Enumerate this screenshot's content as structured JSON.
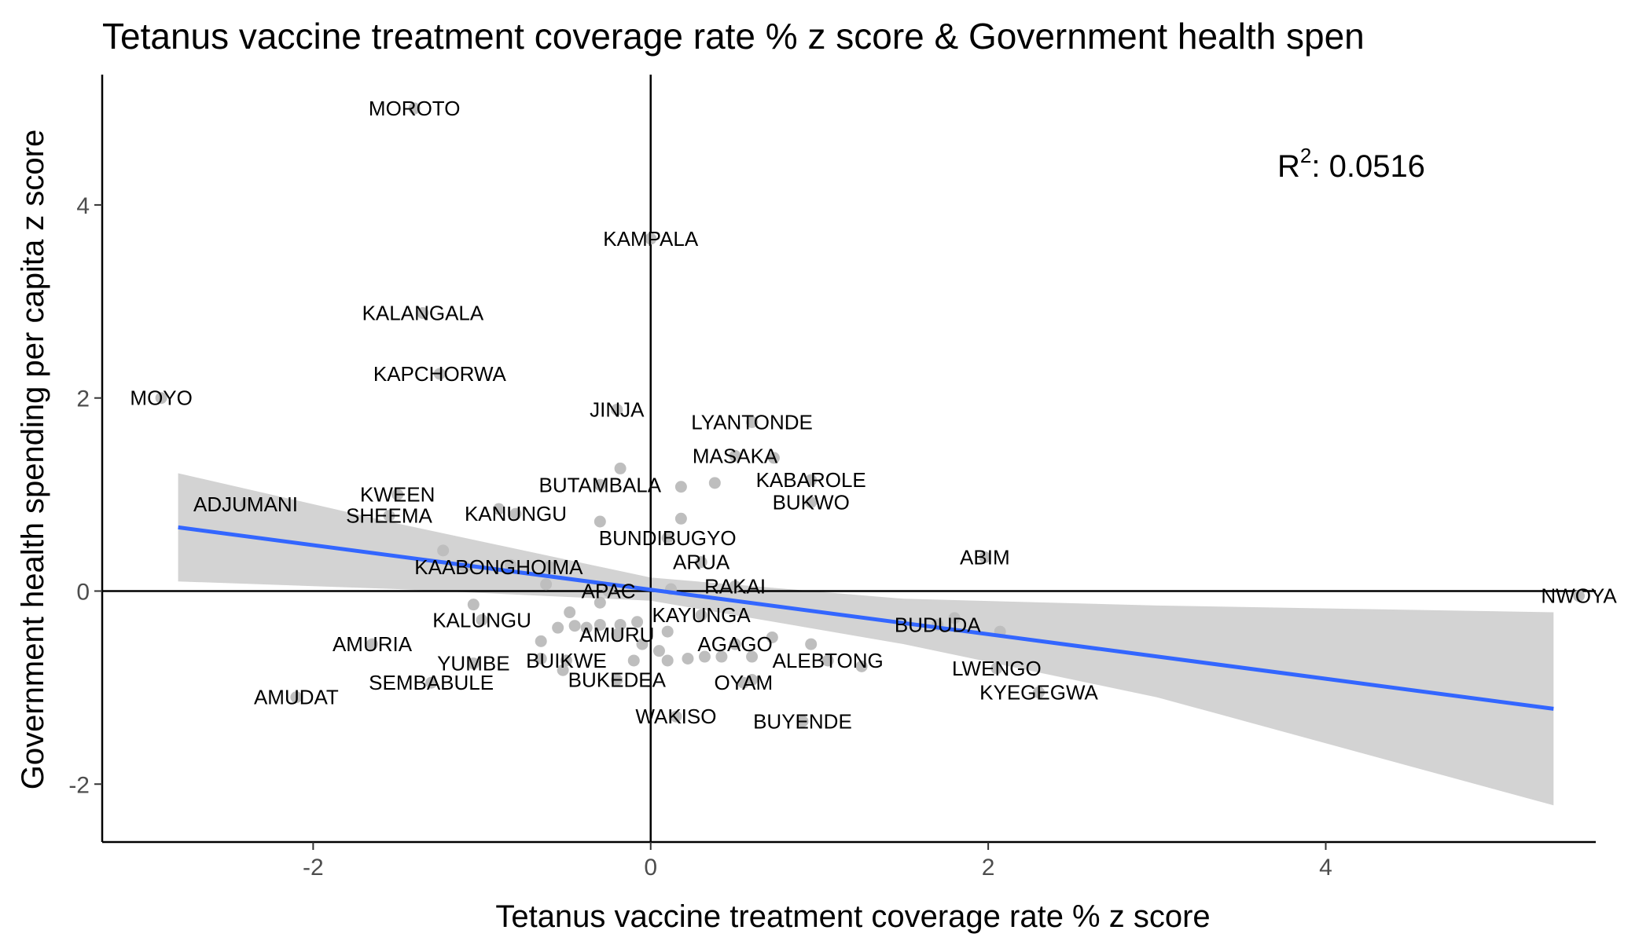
{
  "chart_data": {
    "type": "scatter",
    "title": "Tetanus vaccine treatment coverage rate % z score & Government health spen",
    "xlabel": "Tetanus vaccine treatment coverage rate % z score",
    "ylabel": "Government health spending per capita z score",
    "xlim": [
      -3.25,
      5.6
    ],
    "ylim": [
      -2.6,
      5.35
    ],
    "x_ticks": [
      -2,
      0,
      2,
      4
    ],
    "y_ticks": [
      -2,
      0,
      2,
      4
    ],
    "x_tick_labels": [
      "-2",
      "0",
      "2",
      "4"
    ],
    "y_tick_labels": [
      "-2",
      "0",
      "2",
      "4"
    ],
    "reference_lines": {
      "x": 0,
      "y": 0
    },
    "annotation": {
      "prefix": "R",
      "superscript": "2",
      "text": ": 0.0516",
      "r_squared": 0.0516
    },
    "colors": {
      "points": "#bebebe",
      "fit_line": "#3366ff",
      "ribbon": "#d3d3d3",
      "axis": "#000000"
    },
    "regression": {
      "x_start": -2.8,
      "x_end": 5.35,
      "y_start": 0.66,
      "y_end": -1.22,
      "ci_upper": [
        [
          -2.8,
          1.22
        ],
        [
          -1.5,
          0.7
        ],
        [
          0,
          0.14
        ],
        [
          1.5,
          -0.08
        ],
        [
          3,
          -0.15
        ],
        [
          5.35,
          -0.22
        ]
      ],
      "ci_lower": [
        [
          -2.8,
          0.1
        ],
        [
          -1.5,
          0.02
        ],
        [
          0,
          -0.1
        ],
        [
          1.5,
          -0.55
        ],
        [
          3,
          -1.1
        ],
        [
          5.35,
          -2.22
        ]
      ]
    },
    "labeled_points": [
      {
        "name": "MOROTO",
        "x": -1.4,
        "y": 5.0
      },
      {
        "name": "KAMPALA",
        "x": 0.0,
        "y": 3.65
      },
      {
        "name": "KALANGALA",
        "x": -1.35,
        "y": 2.88
      },
      {
        "name": "KAPCHORWA",
        "x": -1.25,
        "y": 2.25
      },
      {
        "name": "MOYO",
        "x": -2.9,
        "y": 2.0
      },
      {
        "name": "JINJA",
        "x": -0.2,
        "y": 1.88
      },
      {
        "name": "LYANTONDE",
        "x": 0.6,
        "y": 1.75
      },
      {
        "name": "MASAKA",
        "x": 0.5,
        "y": 1.4
      },
      {
        "name": "KABAROLE",
        "x": 0.95,
        "y": 1.15
      },
      {
        "name": "BUTAMBALA",
        "x": -0.3,
        "y": 1.1
      },
      {
        "name": "BUKWO",
        "x": 0.95,
        "y": 0.92
      },
      {
        "name": "KWEEN",
        "x": -1.5,
        "y": 1.0
      },
      {
        "name": "ADJUMANI",
        "x": -2.4,
        "y": 0.9
      },
      {
        "name": "KANUNGU",
        "x": -0.8,
        "y": 0.8
      },
      {
        "name": "SHEEMA",
        "x": -1.55,
        "y": 0.78
      },
      {
        "name": "BUNDIBUGYO",
        "x": 0.1,
        "y": 0.55
      },
      {
        "name": "ABIM",
        "x": 1.98,
        "y": 0.35
      },
      {
        "name": "ARUA",
        "x": 0.3,
        "y": 0.3
      },
      {
        "name": "KAABONG",
        "x": -1.1,
        "y": 0.25
      },
      {
        "name": "HOIMA",
        "x": -0.6,
        "y": 0.25
      },
      {
        "name": "APAC",
        "x": -0.25,
        "y": 0.0
      },
      {
        "name": "RAKAI",
        "x": 0.5,
        "y": 0.05
      },
      {
        "name": "NWOYA",
        "x": 5.5,
        "y": -0.05
      },
      {
        "name": "KAYUNGA",
        "x": 0.3,
        "y": -0.25
      },
      {
        "name": "KALUNGU",
        "x": -1.0,
        "y": -0.3
      },
      {
        "name": "BUDUDA",
        "x": 1.7,
        "y": -0.35
      },
      {
        "name": "AMURU",
        "x": -0.2,
        "y": -0.45
      },
      {
        "name": "AMURIA",
        "x": -1.65,
        "y": -0.55
      },
      {
        "name": "AGAGO",
        "x": 0.5,
        "y": -0.55
      },
      {
        "name": "YUMBE",
        "x": -1.05,
        "y": -0.75
      },
      {
        "name": "BUIKWE",
        "x": -0.5,
        "y": -0.72
      },
      {
        "name": "ALEBTONG",
        "x": 1.05,
        "y": -0.72
      },
      {
        "name": "LWENGO",
        "x": 2.05,
        "y": -0.8
      },
      {
        "name": "SEMBABULE",
        "x": -1.3,
        "y": -0.95
      },
      {
        "name": "BUKEDEA",
        "x": -0.2,
        "y": -0.92
      },
      {
        "name": "OYAM",
        "x": 0.55,
        "y": -0.95
      },
      {
        "name": "KYEGEGWA",
        "x": 2.3,
        "y": -1.05
      },
      {
        "name": "AMUDAT",
        "x": -2.1,
        "y": -1.1
      },
      {
        "name": "WAKISO",
        "x": 0.15,
        "y": -1.3
      },
      {
        "name": "BUYENDE",
        "x": 0.9,
        "y": -1.35
      }
    ],
    "other_points": [
      {
        "x": -0.18,
        "y": 1.27
      },
      {
        "x": 0.38,
        "y": 1.12
      },
      {
        "x": 0.18,
        "y": 1.08
      },
      {
        "x": 0.73,
        "y": 1.38
      },
      {
        "x": -0.3,
        "y": 0.72
      },
      {
        "x": 0.18,
        "y": 0.75
      },
      {
        "x": -0.9,
        "y": 0.85
      },
      {
        "x": -1.23,
        "y": 0.42
      },
      {
        "x": -0.83,
        "y": 0.27
      },
      {
        "x": -0.62,
        "y": 0.07
      },
      {
        "x": 0.12,
        "y": 0.02
      },
      {
        "x": -1.05,
        "y": -0.14
      },
      {
        "x": -0.48,
        "y": -0.22
      },
      {
        "x": -0.45,
        "y": -0.36
      },
      {
        "x": -0.38,
        "y": -0.38
      },
      {
        "x": -0.55,
        "y": -0.38
      },
      {
        "x": -0.65,
        "y": -0.52
      },
      {
        "x": -0.3,
        "y": -0.35
      },
      {
        "x": -0.18,
        "y": -0.35
      },
      {
        "x": -0.08,
        "y": -0.32
      },
      {
        "x": 0.1,
        "y": -0.42
      },
      {
        "x": -0.05,
        "y": -0.55
      },
      {
        "x": 0.05,
        "y": -0.62
      },
      {
        "x": -0.65,
        "y": -0.7
      },
      {
        "x": -0.52,
        "y": -0.82
      },
      {
        "x": -0.1,
        "y": -0.72
      },
      {
        "x": 0.1,
        "y": -0.72
      },
      {
        "x": 0.22,
        "y": -0.7
      },
      {
        "x": 0.32,
        "y": -0.68
      },
      {
        "x": 0.42,
        "y": -0.68
      },
      {
        "x": 0.6,
        "y": -0.68
      },
      {
        "x": 0.72,
        "y": -0.48
      },
      {
        "x": 0.95,
        "y": -0.55
      },
      {
        "x": 1.25,
        "y": -0.78
      },
      {
        "x": 0.6,
        "y": -0.92
      },
      {
        "x": 2.07,
        "y": -0.42
      },
      {
        "x": 1.8,
        "y": -0.28
      },
      {
        "x": -0.3,
        "y": -0.12
      }
    ]
  }
}
